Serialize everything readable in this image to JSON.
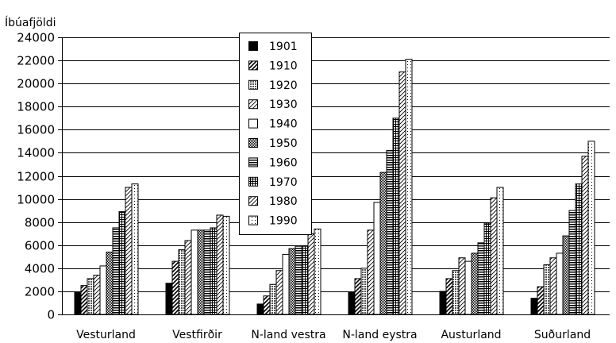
{
  "chart_data": {
    "type": "bar",
    "ylabel": "Íbúafjöldi",
    "ylim": [
      0,
      24000
    ],
    "yticks": [
      0,
      2000,
      4000,
      6000,
      8000,
      10000,
      12000,
      14000,
      16000,
      18000,
      20000,
      22000,
      24000
    ],
    "grid": true,
    "legend_placement": "top-center",
    "categories": [
      "Vesturland",
      "Vestfirðir",
      "N-land vestra",
      "N-land eystra",
      "Austurland",
      "Suðurland"
    ],
    "series": [
      {
        "name": "1901",
        "values": [
          1900,
          2700,
          900,
          1950,
          2000,
          1400
        ]
      },
      {
        "name": "1910",
        "values": [
          2500,
          4600,
          1600,
          3100,
          3100,
          2400
        ]
      },
      {
        "name": "1920",
        "values": [
          3100,
          5600,
          2600,
          4000,
          3800,
          4300
        ]
      },
      {
        "name": "1930",
        "values": [
          3400,
          6400,
          3800,
          7300,
          4900,
          4900
        ]
      },
      {
        "name": "1940",
        "values": [
          4200,
          7300,
          5200,
          9700,
          4600,
          5300
        ]
      },
      {
        "name": "1950",
        "values": [
          5400,
          7300,
          5700,
          12300,
          5300,
          6800
        ]
      },
      {
        "name": "1960",
        "values": [
          7500,
          7300,
          5900,
          14200,
          6200,
          9000
        ]
      },
      {
        "name": "1970",
        "values": [
          8900,
          7500,
          5900,
          17000,
          7900,
          11300
        ]
      },
      {
        "name": "1980",
        "values": [
          11000,
          8600,
          7000,
          21000,
          10100,
          13700
        ]
      },
      {
        "name": "1990",
        "values": [
          11300,
          8500,
          7400,
          22100,
          11000,
          15000
        ]
      }
    ]
  }
}
